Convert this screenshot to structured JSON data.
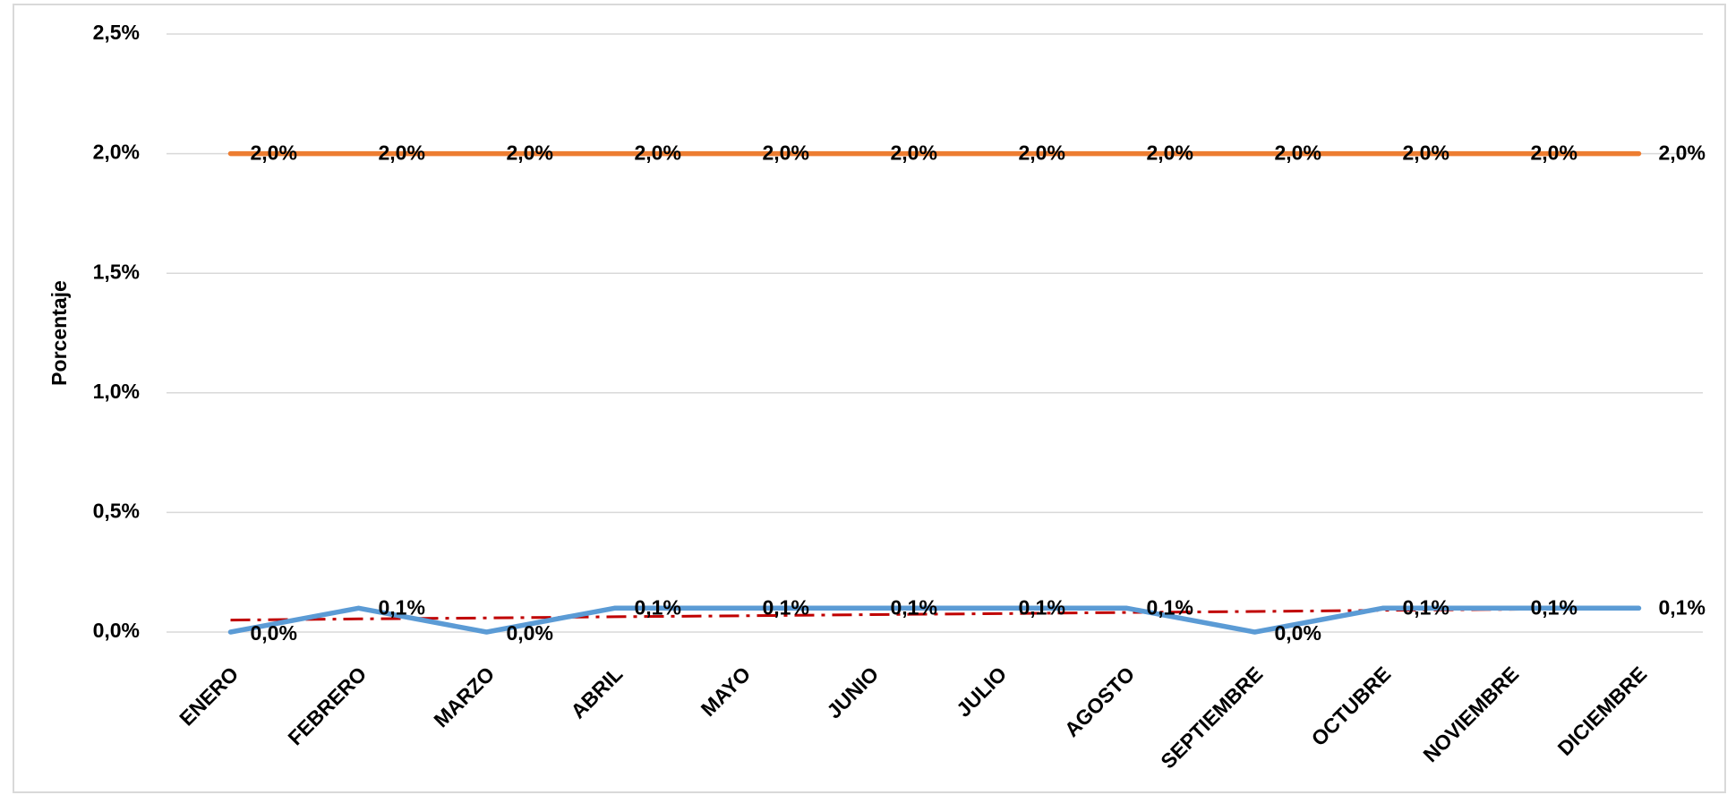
{
  "chart_data": {
    "type": "line",
    "y_label": "Porcentaje",
    "categories": [
      "ENERO",
      "FEBRERO",
      "MARZO",
      "ABRIL",
      "MAYO",
      "JUNIO",
      "JULIO",
      "AGOSTO",
      "SEPTIEMBRE",
      "OCTUBRE",
      "NOVIEMBRE",
      "DICIEMBRE"
    ],
    "series": [
      {
        "color": "#5b9bd5",
        "values": [
          0,
          0.1,
          0,
          0.1,
          0.1,
          0.1,
          0.1,
          0.1,
          0,
          0.1,
          0.1,
          0.1
        ],
        "value_labels": [
          "0,0%",
          "0,1%",
          "0,0%",
          "0,1%",
          "0,1%",
          "0,1%",
          "0,1%",
          "0,1%",
          "0,0%",
          "0,1%",
          "0,1%",
          "0,1%"
        ]
      },
      {
        "color": "#ed7d31",
        "values": [
          2,
          2,
          2,
          2,
          2,
          2,
          2,
          2,
          2,
          2,
          2,
          2
        ],
        "value_labels": [
          "2,0%",
          "2,0%",
          "2,0%",
          "2,0%",
          "2,0%",
          "2,0%",
          "2,0%",
          "2,0%",
          "2,0%",
          "2,0%",
          "2,0%",
          "2,0%"
        ]
      },
      {
        "color": "#c00000",
        "style": "dash-dot",
        "values": [
          0.05,
          0.055,
          0.059,
          0.064,
          0.068,
          0.073,
          0.077,
          0.082,
          0.086,
          0.091,
          0.095,
          0.1
        ]
      }
    ],
    "ylim": [
      0,
      2.5
    ],
    "yticks": [
      {
        "value": 0,
        "label": "0,0%"
      },
      {
        "value": 0.5,
        "label": "0,5%"
      },
      {
        "value": 1,
        "label": "1,0%"
      },
      {
        "value": 1.5,
        "label": "1,5%"
      },
      {
        "value": 2,
        "label": "2,0%"
      },
      {
        "value": 2.5,
        "label": "2,5%"
      }
    ],
    "grid": true
  }
}
